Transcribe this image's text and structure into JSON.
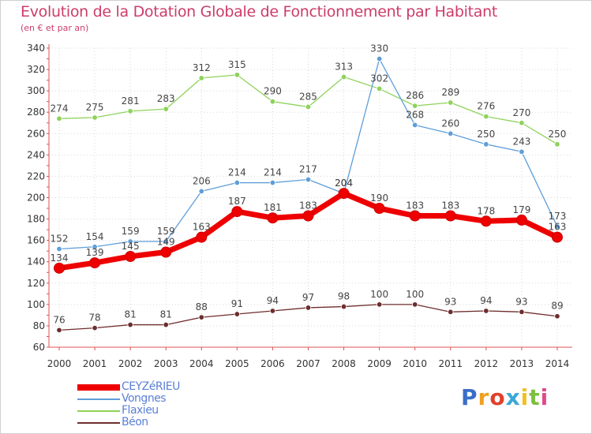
{
  "title": "Evolution de la Dotation Globale de Fonctionnement par Habitant",
  "subtitle": "(en € et par an)",
  "chart_data": {
    "type": "line",
    "title": "Evolution de la Dotation Globale de Fonctionnement par Habitant",
    "subtitle": "(en € et par an)",
    "x": [
      "2000",
      "2001",
      "2002",
      "2003",
      "2004",
      "2005",
      "2006",
      "2007",
      "2008",
      "2009",
      "2010",
      "2011",
      "2012",
      "2013",
      "2014"
    ],
    "ylim": [
      60,
      340
    ],
    "yticks": [
      60,
      80,
      100,
      120,
      140,
      160,
      180,
      200,
      220,
      240,
      260,
      280,
      300,
      320,
      340
    ],
    "grid": true,
    "legend_position": "bottom-left",
    "series": [
      {
        "name": "CEYZéRIEU",
        "color": "#ee0000",
        "values": [
          134,
          139,
          145,
          149,
          163,
          187,
          181,
          183,
          204,
          190,
          183,
          183,
          178,
          179,
          163
        ]
      },
      {
        "name": "Vongnes",
        "color": "#5f9ed8",
        "values": [
          152,
          154,
          159,
          159,
          206,
          214,
          214,
          217,
          204,
          330,
          268,
          260,
          250,
          243,
          173
        ]
      },
      {
        "name": "Flaxieu",
        "color": "#8ed25a",
        "values": [
          274,
          275,
          281,
          283,
          312,
          315,
          290,
          285,
          313,
          302,
          286,
          289,
          276,
          270,
          250
        ]
      },
      {
        "name": "Béon",
        "color": "#6e2d2d",
        "values": [
          76,
          78,
          81,
          81,
          88,
          91,
          94,
          97,
          98,
          100,
          100,
          93,
          94,
          93,
          89
        ]
      }
    ]
  },
  "logo": {
    "text": "Proxiti",
    "letters": [
      {
        "ch": "P",
        "color": "#3a6fc8"
      },
      {
        "ch": "r",
        "color": "#f0a020"
      },
      {
        "ch": "o",
        "color": "#e0402a"
      },
      {
        "ch": "x",
        "color": "#3aa8d8"
      },
      {
        "ch": "i",
        "color": "#f0c020"
      },
      {
        "ch": "t",
        "color": "#7cc040"
      },
      {
        "ch": "i",
        "color": "#e04a8a"
      }
    ]
  }
}
